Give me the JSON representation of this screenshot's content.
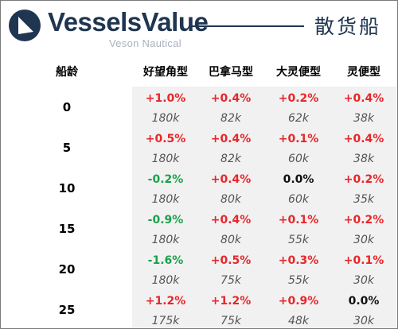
{
  "brand": {
    "name": "VesselsValue",
    "sub": "Veson Nautical",
    "accent": "#1f3550",
    "mark_icon": "vesselsvalue-logo-icon"
  },
  "title": "散货船",
  "table": {
    "age_header": "船龄",
    "columns": [
      "好望角型",
      "巴拿马型",
      "大灵便型",
      "灵便型"
    ],
    "rows": [
      {
        "age": "0",
        "cells": [
          {
            "pct": "+1.0%",
            "val": "180k",
            "tone": "pos"
          },
          {
            "pct": "+0.4%",
            "val": "82k",
            "tone": "pos"
          },
          {
            "pct": "+0.2%",
            "val": "62k",
            "tone": "pos"
          },
          {
            "pct": "+0.4%",
            "val": "38k",
            "tone": "pos"
          }
        ]
      },
      {
        "age": "5",
        "cells": [
          {
            "pct": "+0.5%",
            "val": "180k",
            "tone": "pos"
          },
          {
            "pct": "+0.4%",
            "val": "82k",
            "tone": "pos"
          },
          {
            "pct": "+0.1%",
            "val": "60k",
            "tone": "pos"
          },
          {
            "pct": "+0.4%",
            "val": "38k",
            "tone": "pos"
          }
        ]
      },
      {
        "age": "10",
        "cells": [
          {
            "pct": "-0.2%",
            "val": "180k",
            "tone": "neg"
          },
          {
            "pct": "+0.4%",
            "val": "80k",
            "tone": "pos"
          },
          {
            "pct": "0.0%",
            "val": "60k",
            "tone": "neu"
          },
          {
            "pct": "+0.2%",
            "val": "35k",
            "tone": "pos"
          }
        ]
      },
      {
        "age": "15",
        "cells": [
          {
            "pct": "-0.9%",
            "val": "180k",
            "tone": "neg"
          },
          {
            "pct": "+0.4%",
            "val": "80k",
            "tone": "pos"
          },
          {
            "pct": "+0.1%",
            "val": "55k",
            "tone": "pos"
          },
          {
            "pct": "+0.2%",
            "val": "30k",
            "tone": "pos"
          }
        ]
      },
      {
        "age": "20",
        "cells": [
          {
            "pct": "-1.6%",
            "val": "180k",
            "tone": "neg"
          },
          {
            "pct": "+0.5%",
            "val": "75k",
            "tone": "pos"
          },
          {
            "pct": "+0.3%",
            "val": "55k",
            "tone": "pos"
          },
          {
            "pct": "+0.1%",
            "val": "30k",
            "tone": "pos"
          }
        ]
      },
      {
        "age": "25",
        "cells": [
          {
            "pct": "+1.2%",
            "val": "175k",
            "tone": "pos"
          },
          {
            "pct": "+1.2%",
            "val": "75k",
            "tone": "pos"
          },
          {
            "pct": "+0.9%",
            "val": "48k",
            "tone": "pos"
          },
          {
            "pct": "0.0%",
            "val": "30k",
            "tone": "neu"
          }
        ]
      }
    ],
    "tone_colors": {
      "pos": "#e8262b",
      "neg": "#1aa24a",
      "neu": "#111111"
    }
  }
}
